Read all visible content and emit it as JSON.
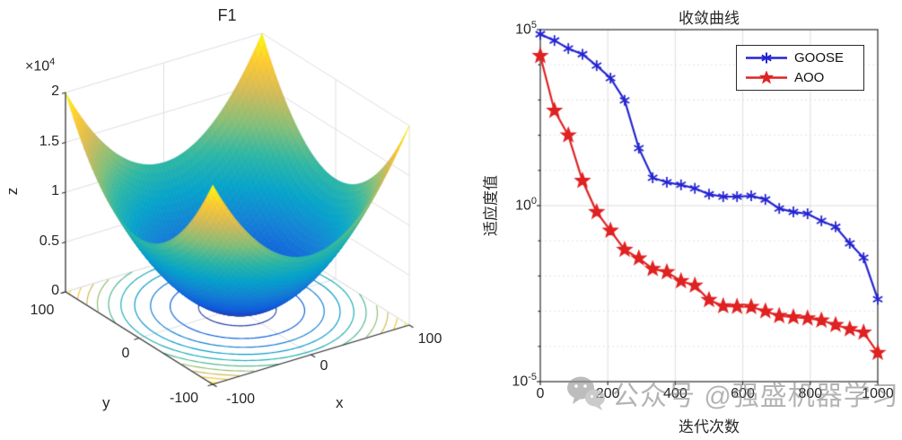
{
  "figure": {
    "background": "#ffffff"
  },
  "left_plot": {
    "title": "F1",
    "xlabel": "x",
    "ylabel": "y",
    "zlabel": "z",
    "z_scale": {
      "prefix": "×10",
      "exp": "4"
    },
    "x_ticks": [
      "-100",
      "0",
      "100"
    ],
    "y_ticks": [
      "100",
      "0",
      "-100"
    ],
    "z_ticks": [
      "0",
      "0.5",
      "1",
      "1.5",
      "2"
    ]
  },
  "right_plot": {
    "title": "收敛曲线",
    "xlabel": "迭代次数",
    "ylabel": "适应度值",
    "x_ticks": [
      0,
      200,
      400,
      600,
      800,
      1000
    ],
    "y_tick_exponents": [
      5,
      0,
      -5
    ],
    "legend": [
      {
        "label": "GOOSE",
        "color": "#2424d2",
        "marker": "asterisk"
      },
      {
        "label": "AOO",
        "color": "#e02222",
        "marker": "pentagram"
      }
    ]
  },
  "watermark": {
    "text": "公众号 @强盛机器学习",
    "icon": "wechat-icon",
    "color": "#7e7e7e"
  },
  "chart_data": [
    {
      "type": "surface",
      "title": "F1",
      "function": "z = x^2 + y^2",
      "x_range": [
        -100,
        100
      ],
      "y_range": [
        -100,
        100
      ],
      "z_range": [
        0,
        20000
      ],
      "z_tick_values": [
        0,
        5000,
        10000,
        15000,
        20000
      ],
      "xlabel": "x",
      "ylabel": "y",
      "zlabel": "z",
      "colormap": "parula",
      "colormap_stops": [
        [
          0.0,
          [
            53,
            42,
            135
          ]
        ],
        [
          0.125,
          [
            15,
            92,
            221
          ]
        ],
        [
          0.25,
          [
            20,
            129,
            214
          ]
        ],
        [
          0.375,
          [
            6,
            164,
            202
          ]
        ],
        [
          0.5,
          [
            46,
            183,
            164
          ]
        ],
        [
          0.625,
          [
            135,
            191,
            119
          ]
        ],
        [
          0.75,
          [
            209,
            187,
            89
          ]
        ],
        [
          0.875,
          [
            254,
            200,
            50
          ]
        ],
        [
          1.0,
          [
            249,
            251,
            14
          ]
        ]
      ],
      "contour_levels": [
        1000,
        3000,
        5000,
        7000,
        9000,
        11000,
        13000,
        15000,
        17000,
        19000
      ],
      "view": "azimuth -37.5, elevation 30"
    },
    {
      "type": "line",
      "title": "收敛曲线",
      "xlabel": "迭代次数",
      "ylabel": "适应度值",
      "x_ticks": [
        0,
        200,
        400,
        600,
        800,
        1000
      ],
      "xlim": [
        0,
        1000
      ],
      "y_scale": "log10",
      "ylim": [
        1e-05,
        100000
      ],
      "grid": true,
      "legend_position": "top-right",
      "x": [
        0,
        42,
        83,
        125,
        167,
        208,
        250,
        292,
        333,
        375,
        417,
        458,
        500,
        542,
        583,
        625,
        667,
        708,
        750,
        792,
        833,
        875,
        917,
        958,
        1000
      ],
      "series": [
        {
          "name": "GOOSE",
          "color": "#2424d2",
          "marker": "asterisk",
          "values": [
            74000,
            49000,
            29000,
            20000,
            9500,
            4200,
            980,
            43,
            6.2,
            4.6,
            3.9,
            3.1,
            2.1,
            1.8,
            1.8,
            1.9,
            1.5,
            0.83,
            0.66,
            0.59,
            0.37,
            0.25,
            0.085,
            0.033,
            0.0022
          ]
        },
        {
          "name": "AOO",
          "color": "#e02222",
          "marker": "pentagram",
          "values": [
            18000,
            500,
            100,
            5.1,
            0.66,
            0.195,
            0.056,
            0.032,
            0.016,
            0.013,
            0.0072,
            0.0054,
            0.0021,
            0.0014,
            0.00135,
            0.00133,
            0.001,
            0.00074,
            0.00068,
            0.00063,
            0.00055,
            0.00041,
            0.00031,
            0.00025,
            6.6e-05
          ]
        }
      ]
    }
  ]
}
